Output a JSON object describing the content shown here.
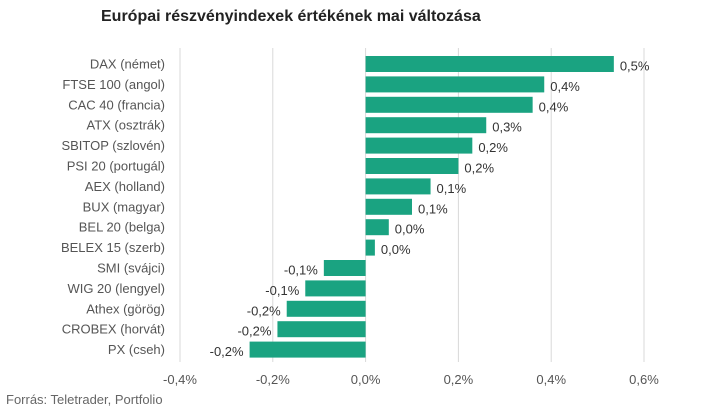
{
  "title": "Európai részvényindexek értékének mai változása",
  "source": "Forrás: Teletrader, Portfolio",
  "colors": {
    "bar": "#1aa381",
    "grid": "#d9d9d9",
    "label": "#555555",
    "value": "#333333"
  },
  "chart_data": {
    "type": "bar",
    "orientation": "horizontal",
    "title": "Európai részvényindexek értékének mai változása",
    "xlabel": "",
    "ylabel": "",
    "xlim": [
      -0.4,
      0.6
    ],
    "x_ticks": [
      -0.4,
      -0.2,
      0.0,
      0.2,
      0.4,
      0.6
    ],
    "x_tick_labels": [
      "-0,4%",
      "-0,2%",
      "0,0%",
      "0,2%",
      "0,4%",
      "0,6%"
    ],
    "grid": "vertical",
    "categories": [
      "DAX (német)",
      "FTSE 100 (angol)",
      "CAC 40 (francia)",
      "ATX (osztrák)",
      "SBITOP (szlovén)",
      "PSI 20 (portugál)",
      "AEX (holland)",
      "BUX (magyar)",
      "BEL 20 (belga)",
      "BELEX 15 (szerb)",
      "SMI (svájci)",
      "WIG 20 (lengyel)",
      "Athex (görög)",
      "CROBEX (horvát)",
      "PX (cseh)"
    ],
    "values": [
      0.535,
      0.385,
      0.36,
      0.26,
      0.23,
      0.2,
      0.14,
      0.1,
      0.05,
      0.02,
      -0.09,
      -0.13,
      -0.17,
      -0.19,
      -0.25
    ],
    "value_labels": [
      "0,5%",
      "0,4%",
      "0,4%",
      "0,3%",
      "0,2%",
      "0,2%",
      "0,1%",
      "0,1%",
      "0,0%",
      "0,0%",
      "-0,1%",
      "-0,1%",
      "-0,2%",
      "-0,2%",
      "-0,2%"
    ]
  }
}
